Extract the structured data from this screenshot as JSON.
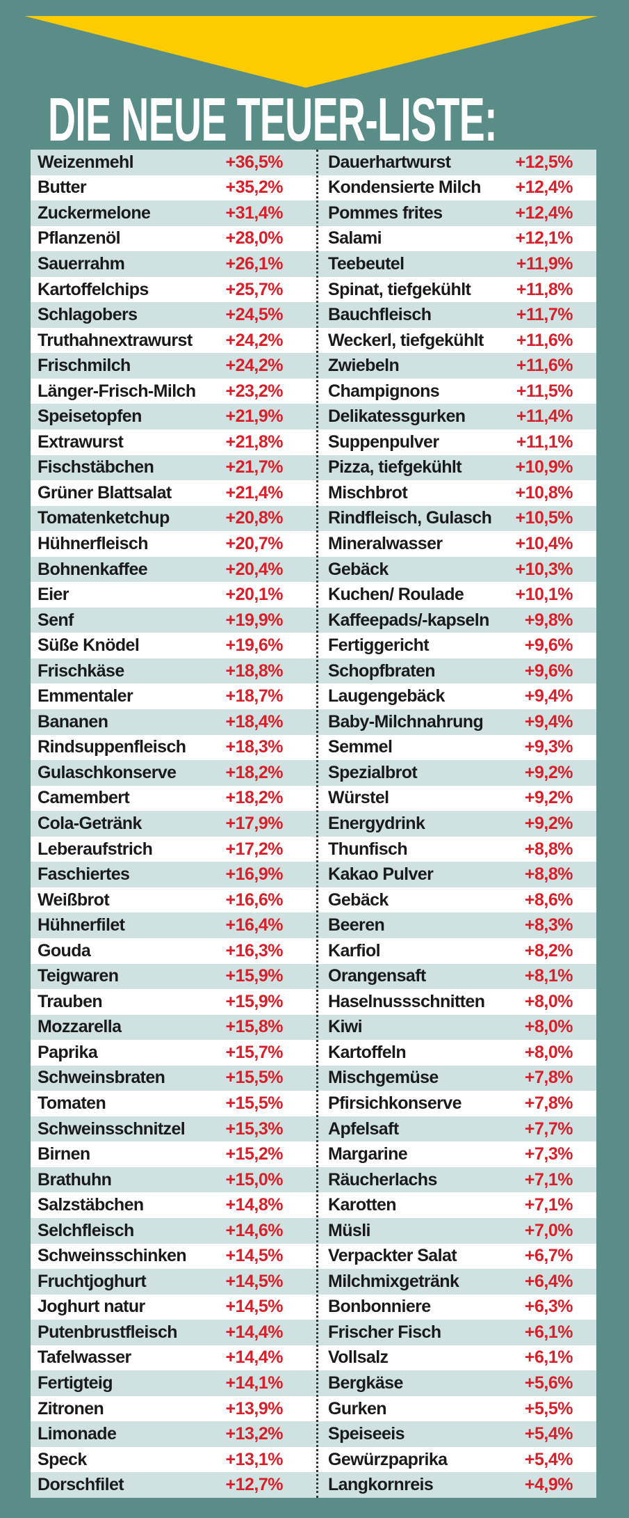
{
  "colors": {
    "background": "#5a8c88",
    "arrow": "#fccc00",
    "stripe": "#cfe2e1",
    "percent": "#d9202a"
  },
  "icons": {
    "arrow": "down-triangle-arrow"
  },
  "title": "DIE NEUE TEUER-LISTE:",
  "left": [
    [
      "Weizenmehl",
      "+36,5%"
    ],
    [
      "Butter",
      "+35,2%"
    ],
    [
      "Zuckermelone",
      "+31,4%"
    ],
    [
      "Pflanzenöl",
      "+28,0%"
    ],
    [
      "Sauerrahm",
      "+26,1%"
    ],
    [
      "Kartoffelchips",
      "+25,7%"
    ],
    [
      "Schlagobers",
      "+24,5%"
    ],
    [
      "Truthahnextrawurst",
      "+24,2%"
    ],
    [
      "Frischmilch",
      "+24,2%"
    ],
    [
      "Länger-Frisch-Milch",
      "+23,2%"
    ],
    [
      "Speisetopfen",
      "+21,9%"
    ],
    [
      "Extrawurst",
      "+21,8%"
    ],
    [
      "Fischstäbchen",
      "+21,7%"
    ],
    [
      "Grüner Blattsalat",
      "+21,4%"
    ],
    [
      "Tomatenketchup",
      "+20,8%"
    ],
    [
      "Hühnerfleisch",
      "+20,7%"
    ],
    [
      "Bohnenkaffee",
      "+20,4%"
    ],
    [
      "Eier",
      "+20,1%"
    ],
    [
      "Senf",
      "+19,9%"
    ],
    [
      "Süße Knödel",
      "+19,6%"
    ],
    [
      "Frischkäse",
      "+18,8%"
    ],
    [
      "Emmentaler",
      "+18,7%"
    ],
    [
      "Bananen",
      "+18,4%"
    ],
    [
      "Rindsuppenfleisch",
      "+18,3%"
    ],
    [
      "Gulaschkonserve",
      "+18,2%"
    ],
    [
      "Camembert",
      "+18,2%"
    ],
    [
      "Cola-Getränk",
      "+17,9%"
    ],
    [
      "Leberaufstrich",
      "+17,2%"
    ],
    [
      "Faschiertes",
      "+16,9%"
    ],
    [
      "Weißbrot",
      "+16,6%"
    ],
    [
      "Hühnerfilet",
      "+16,4%"
    ],
    [
      "Gouda",
      "+16,3%"
    ],
    [
      "Teigwaren",
      "+15,9%"
    ],
    [
      "Trauben",
      "+15,9%"
    ],
    [
      "Mozzarella",
      "+15,8%"
    ],
    [
      "Paprika",
      "+15,7%"
    ],
    [
      "Schweinsbraten",
      "+15,5%"
    ],
    [
      "Tomaten",
      "+15,5%"
    ],
    [
      "Schweinsschnitzel",
      "+15,3%"
    ],
    [
      "Birnen",
      "+15,2%"
    ],
    [
      "Brathuhn",
      "+15,0%"
    ],
    [
      "Salzstäbchen",
      "+14,8%"
    ],
    [
      "Selchfleisch",
      "+14,6%"
    ],
    [
      "Schweinsschinken",
      "+14,5%"
    ],
    [
      "Fruchtjoghurt",
      "+14,5%"
    ],
    [
      "Joghurt natur",
      "+14,5%"
    ],
    [
      "Putenbrustfleisch",
      "+14,4%"
    ],
    [
      "Tafelwasser",
      "+14,4%"
    ],
    [
      "Fertigteig",
      "+14,1%"
    ],
    [
      "Zitronen",
      "+13,9%"
    ],
    [
      "Limonade",
      "+13,2%"
    ],
    [
      "Speck",
      "+13,1%"
    ],
    [
      "Dorschfilet",
      "+12,7%"
    ]
  ],
  "right": [
    [
      "Dauerhartwurst",
      "+12,5%"
    ],
    [
      "Kondensierte Milch",
      "+12,4%"
    ],
    [
      "Pommes frites",
      "+12,4%"
    ],
    [
      "Salami",
      "+12,1%"
    ],
    [
      "Teebeutel",
      "+11,9%"
    ],
    [
      "Spinat, tiefgekühlt",
      "+11,8%"
    ],
    [
      "Bauchfleisch",
      "+11,7%"
    ],
    [
      "Weckerl, tiefgekühlt",
      "+11,6%"
    ],
    [
      "Zwiebeln",
      "+11,6%"
    ],
    [
      "Champignons",
      "+11,5%"
    ],
    [
      "Delikatessgurken",
      "+11,4%"
    ],
    [
      "Suppenpulver",
      "+11,1%"
    ],
    [
      "Pizza, tiefgekühlt",
      "+10,9%"
    ],
    [
      "Mischbrot",
      "+10,8%"
    ],
    [
      "Rindfleisch, Gulasch",
      "+10,5%"
    ],
    [
      "Mineralwasser",
      "+10,4%"
    ],
    [
      "Gebäck",
      "+10,3%"
    ],
    [
      "Kuchen/ Roulade",
      "+10,1%"
    ],
    [
      "Kaffeepads/-kapseln",
      "+9,8%"
    ],
    [
      "Fertiggericht",
      "+9,6%"
    ],
    [
      "Schopfbraten",
      "+9,6%"
    ],
    [
      "Laugengebäck",
      "+9,4%"
    ],
    [
      "Baby-Milchnahrung",
      "+9,4%"
    ],
    [
      "Semmel",
      "+9,3%"
    ],
    [
      "Spezialbrot",
      "+9,2%"
    ],
    [
      "Würstel",
      "+9,2%"
    ],
    [
      "Energydrink",
      "+9,2%"
    ],
    [
      "Thunfisch",
      "+8,8%"
    ],
    [
      "Kakao Pulver",
      "+8,8%"
    ],
    [
      "Gebäck",
      "+8,6%"
    ],
    [
      "Beeren",
      "+8,3%"
    ],
    [
      "Karfiol",
      "+8,2%"
    ],
    [
      "Orangensaft",
      "+8,1%"
    ],
    [
      "Haselnussschnitten",
      "+8,0%"
    ],
    [
      "Kiwi",
      "+8,0%"
    ],
    [
      "Kartoffeln",
      "+8,0%"
    ],
    [
      "Mischgemüse",
      "+7,8%"
    ],
    [
      "Pfirsichkonserve",
      "+7,8%"
    ],
    [
      "Apfelsaft",
      "+7,7%"
    ],
    [
      "Margarine",
      "+7,3%"
    ],
    [
      "Räucherlachs",
      "+7,1%"
    ],
    [
      "Karotten",
      "+7,1%"
    ],
    [
      "Müsli",
      "+7,0%"
    ],
    [
      "Verpackter Salat",
      "+6,7%"
    ],
    [
      "Milchmixgetränk",
      "+6,4%"
    ],
    [
      "Bonbonniere",
      "+6,3%"
    ],
    [
      "Frischer Fisch",
      "+6,1%"
    ],
    [
      "Vollsalz",
      "+6,1%"
    ],
    [
      "Bergkäse",
      "+5,6%"
    ],
    [
      "Gurken",
      "+5,5%"
    ],
    [
      "Speiseeis",
      "+5,4%"
    ],
    [
      "Gewürzpaprika",
      "+5,4%"
    ],
    [
      "Langkornreis",
      "+4,9%"
    ]
  ]
}
